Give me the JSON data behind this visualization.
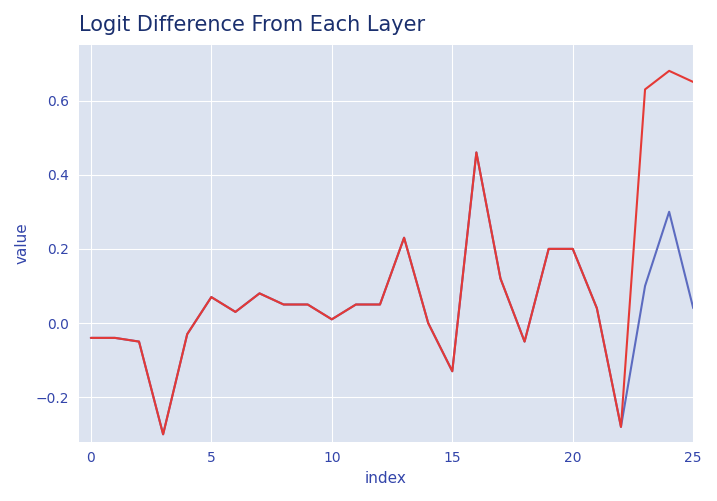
{
  "title": "Logit Difference From Each Layer",
  "xlabel": "index",
  "ylabel": "value",
  "xlim": [
    -0.5,
    25
  ],
  "ylim": [
    -0.32,
    0.75
  ],
  "figure_bg": "#ffffff",
  "plot_bg_color": "#dce3f0",
  "title_color": "#1a2f6e",
  "label_color": "#3345aa",
  "tick_color": "#3345aa",
  "blue_line": [
    -0.04,
    -0.04,
    -0.05,
    -0.3,
    -0.03,
    0.07,
    0.03,
    0.08,
    0.05,
    0.05,
    0.01,
    0.05,
    0.05,
    0.23,
    0.0,
    -0.13,
    0.46,
    0.12,
    -0.05,
    0.2,
    0.2,
    0.04,
    -0.28,
    0.1,
    0.3,
    0.04
  ],
  "red_line": [
    -0.04,
    -0.04,
    -0.05,
    -0.3,
    -0.03,
    0.07,
    0.03,
    0.08,
    0.05,
    0.05,
    0.01,
    0.05,
    0.05,
    0.23,
    0.0,
    -0.13,
    0.46,
    0.12,
    -0.05,
    0.2,
    0.2,
    0.04,
    -0.28,
    0.63,
    0.68,
    0.65
  ],
  "blue_color": "#5c6bc0",
  "red_color": "#e53935",
  "line_width": 1.5,
  "title_fontsize": 15,
  "axis_label_fontsize": 11,
  "tick_fontsize": 10,
  "grid_color": "#ffffff",
  "grid_lw": 0.8
}
